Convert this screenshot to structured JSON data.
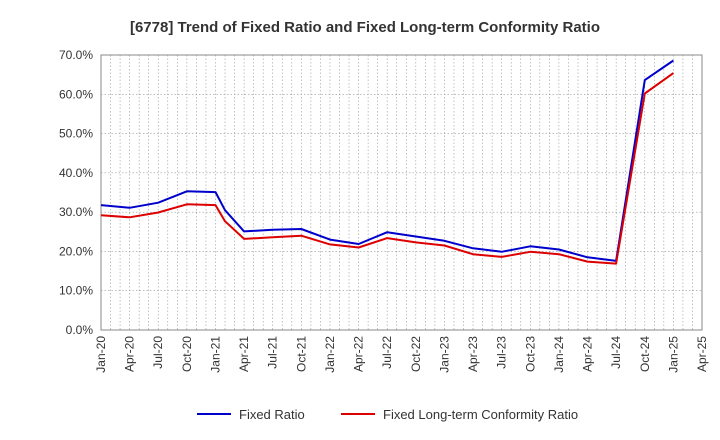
{
  "chart_data": {
    "type": "line",
    "title": "[6778]  Trend of Fixed Ratio and Fixed Long-term Conformity Ratio",
    "xlabel": "",
    "ylabel": "",
    "x_tick_labels": [
      "Jan-20",
      "Apr-20",
      "Jul-20",
      "Oct-20",
      "Jan-21",
      "Apr-21",
      "Jul-21",
      "Oct-21",
      "Jan-22",
      "Apr-22",
      "Jul-22",
      "Oct-22",
      "Jan-23",
      "Apr-23",
      "Jul-23",
      "Oct-23",
      "Jan-24",
      "Apr-24",
      "Jul-24",
      "Oct-24",
      "Jan-25",
      "Apr-25"
    ],
    "y_tick_labels": [
      "0.0%",
      "10.0%",
      "20.0%",
      "30.0%",
      "40.0%",
      "50.0%",
      "60.0%",
      "70.0%"
    ],
    "ylim": [
      0,
      70
    ],
    "grid": true,
    "legend_position": "bottom",
    "x": [
      "Jan-20",
      "Apr-20",
      "Jul-20",
      "Oct-20",
      "Jan-21",
      "Feb-21",
      "Apr-21",
      "Jul-21",
      "Oct-21",
      "Jan-22",
      "Apr-22",
      "Jul-22",
      "Oct-22",
      "Jan-23",
      "Apr-23",
      "Jul-23",
      "Oct-23",
      "Jan-24",
      "Apr-24",
      "Jul-24",
      "Oct-24",
      "Jan-25"
    ],
    "series": [
      {
        "name": "Fixed Ratio",
        "color": "#0000cc",
        "values": [
          31.8,
          31.1,
          32.4,
          35.3,
          35.1,
          30.5,
          25.1,
          25.5,
          25.7,
          23.0,
          21.9,
          24.9,
          23.8,
          22.7,
          20.8,
          19.9,
          21.3,
          20.5,
          18.5,
          17.6,
          63.6,
          68.6
        ]
      },
      {
        "name": "Fixed Long-term Conformity Ratio",
        "color": "#dd0000",
        "values": [
          29.2,
          28.7,
          29.9,
          32.0,
          31.8,
          27.7,
          23.2,
          23.6,
          24.0,
          21.8,
          21.0,
          23.4,
          22.3,
          21.5,
          19.3,
          18.6,
          19.9,
          19.3,
          17.4,
          16.9,
          60.2,
          65.4
        ]
      }
    ]
  }
}
